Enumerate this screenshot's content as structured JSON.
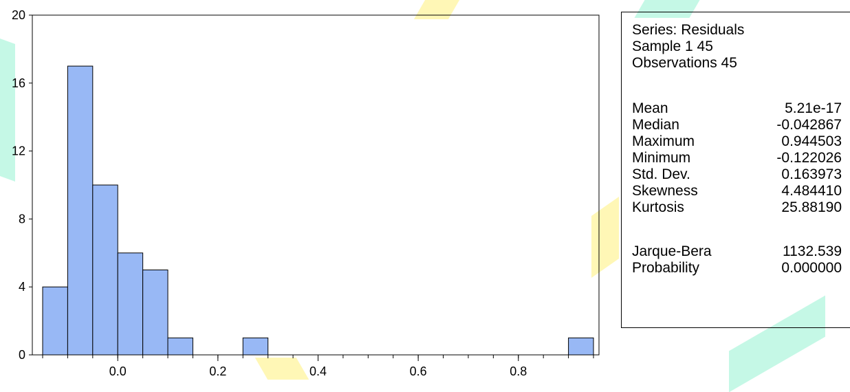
{
  "chart_data": {
    "type": "bar",
    "title": "",
    "xlabel": "",
    "ylabel": "",
    "bin_width": 0.05,
    "bins": [
      {
        "from": -0.15,
        "to": -0.1,
        "count": 4
      },
      {
        "from": -0.1,
        "to": -0.05,
        "count": 17
      },
      {
        "from": -0.05,
        "to": 0.0,
        "count": 10
      },
      {
        "from": 0.0,
        "to": 0.05,
        "count": 6
      },
      {
        "from": 0.05,
        "to": 0.1,
        "count": 5
      },
      {
        "from": 0.1,
        "to": 0.15,
        "count": 1
      },
      {
        "from": 0.25,
        "to": 0.3,
        "count": 1
      },
      {
        "from": 0.9,
        "to": 0.95,
        "count": 1
      }
    ],
    "xlim": [
      -0.15,
      0.95
    ],
    "ylim": [
      0,
      20
    ],
    "x_ticks": [
      "0.0",
      "0.2",
      "0.4",
      "0.6",
      "0.8"
    ],
    "x_tick_values": [
      0.0,
      0.2,
      0.4,
      0.6,
      0.8
    ],
    "y_ticks": [
      "0",
      "4",
      "8",
      "12",
      "16",
      "20"
    ],
    "y_tick_values": [
      0,
      4,
      8,
      12,
      16,
      20
    ],
    "bar_color": "#98b8f5",
    "grid": false,
    "legend": "none"
  },
  "stats": {
    "header": [
      "Series: Residuals",
      "Sample 1 45",
      "Observations 45"
    ],
    "rows": [
      {
        "label": "Mean",
        "value": "5.21e-17"
      },
      {
        "label": "Median",
        "value": "-0.042867"
      },
      {
        "label": "Maximum",
        "value": "0.944503"
      },
      {
        "label": "Minimum",
        "value": "-0.122026"
      },
      {
        "label": "Std. Dev.",
        "value": "0.163973"
      },
      {
        "label": "Skewness",
        "value": "4.484410"
      },
      {
        "label": "Kurtosis",
        "value": "25.88190"
      }
    ],
    "test_rows": [
      {
        "label": "Jarque-Bera",
        "value": "1132.539"
      },
      {
        "label": "Probability",
        "value": "0.000000"
      }
    ]
  }
}
